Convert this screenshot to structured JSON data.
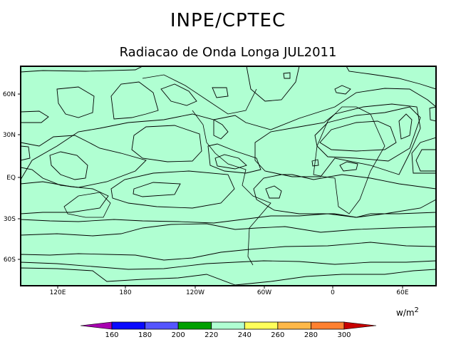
{
  "header": {
    "title": "INPE/CPTEC",
    "subtitle": "Radiacao de Onda Longa JUL2011"
  },
  "map": {
    "lon_labels": [
      "120E",
      "180",
      "120W",
      "60W",
      "0",
      "60E"
    ],
    "lat_labels": [
      "60N",
      "30N",
      "EQ",
      "30S",
      "60S"
    ],
    "lon_range": [
      90,
      450
    ],
    "lat_range": [
      -80,
      80
    ]
  },
  "colorbar": {
    "levels": [
      "160",
      "180",
      "200",
      "220",
      "240",
      "260",
      "280",
      "300"
    ],
    "colors": [
      "#a800b0",
      "#0a0aff",
      "#5555ff",
      "#00a000",
      "#b0ffd2",
      "#ffff5a",
      "#ffb848",
      "#ff8030",
      "#c80000"
    ],
    "units": "w/m",
    "units_exp": "2"
  }
}
